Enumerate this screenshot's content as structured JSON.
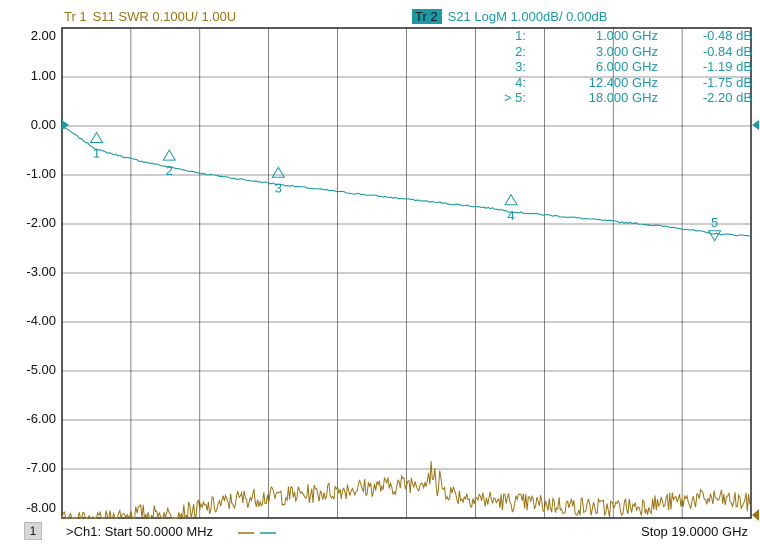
{
  "trace1": {
    "label": "Tr  1",
    "desc": "S11 SWR 0.100U/  1.00U",
    "color": "#9a7410"
  },
  "trace2": {
    "label": "Tr  2",
    "desc": "S21 LogM 1.000dB/  0.00dB",
    "color": "#1b9aa5"
  },
  "y_axis": {
    "labels": [
      "2.00",
      "1.00",
      "0.00",
      "-1.00",
      "-2.00",
      "-3.00",
      "-4.00",
      "-5.00",
      "-6.00",
      "-7.00",
      "-8.00"
    ],
    "values": [
      2,
      1,
      0,
      -1,
      -2,
      -3,
      -4,
      -5,
      -6,
      -7,
      -8
    ],
    "divisions": 10,
    "grid": true
  },
  "markers": [
    {
      "id": "1:",
      "freq": "1.000 GHz",
      "value": "-0.48 dB",
      "label": "1",
      "f_ghz": 1.0,
      "db": -0.48,
      "direction": "up"
    },
    {
      "id": "2:",
      "freq": "3.000 GHz",
      "value": "-0.84 dB",
      "label": "2",
      "f_ghz": 3.0,
      "db": -0.84,
      "direction": "up"
    },
    {
      "id": "3:",
      "freq": "6.000 GHz",
      "value": "-1.19 dB",
      "label": "3",
      "f_ghz": 6.0,
      "db": -1.19,
      "direction": "up"
    },
    {
      "id": "4:",
      "freq": "12.400 GHz",
      "value": "-1.75 dB",
      "label": "4",
      "f_ghz": 12.4,
      "db": -1.75,
      "direction": "up"
    },
    {
      "id": "> 5:",
      "freq": "18.000 GHz",
      "value": "-2.20 dB",
      "label": "5",
      "f_ghz": 18.0,
      "db": -2.2,
      "direction": "down"
    }
  ],
  "footer": {
    "channel": "1",
    "start": ">Ch1: Start  50.0000 MHz",
    "stop": "Stop  19.0000 GHz"
  },
  "chart_data": {
    "type": "line",
    "x_range_ghz": [
      0.05,
      19.0
    ],
    "ylim": [
      -8,
      2
    ],
    "series": [
      {
        "name": "S21 LogM",
        "color": "#1b9aa5",
        "x": [
          0.05,
          1.0,
          2.0,
          3.0,
          4.0,
          5.0,
          6.0,
          7.0,
          8.0,
          9.0,
          10.0,
          11.0,
          12.0,
          12.4,
          13.0,
          14.0,
          15.0,
          16.0,
          17.0,
          18.0,
          19.0
        ],
        "y": [
          0.0,
          -0.48,
          -0.68,
          -0.84,
          -0.98,
          -1.09,
          -1.19,
          -1.28,
          -1.37,
          -1.45,
          -1.53,
          -1.61,
          -1.69,
          -1.75,
          -1.79,
          -1.86,
          -1.93,
          -2.0,
          -2.08,
          -2.2,
          -2.24
        ]
      },
      {
        "name": "S11 SWR",
        "color": "#9a7410",
        "x": [
          0.05,
          1.0,
          2.0,
          3.0,
          4.0,
          5.0,
          6.0,
          7.0,
          8.0,
          9.0,
          10.0,
          11.0,
          12.0,
          13.0,
          14.0,
          15.0,
          16.0,
          17.0,
          18.0,
          19.0
        ],
        "y": [
          -8.05,
          -8.1,
          -7.9,
          -7.95,
          -7.8,
          -7.6,
          -7.55,
          -7.5,
          -7.4,
          -7.35,
          -7.25,
          -7.55,
          -7.65,
          -7.7,
          -7.75,
          -7.8,
          -7.75,
          -7.65,
          -7.6,
          -7.7
        ]
      }
    ]
  }
}
